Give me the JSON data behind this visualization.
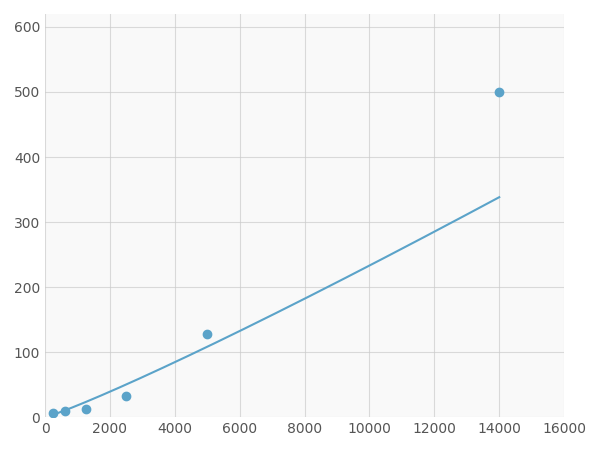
{
  "x": [
    250,
    625,
    1250,
    2500,
    5000,
    14000
  ],
  "y": [
    7,
    10,
    13,
    32,
    128,
    500
  ],
  "line_color": "#5ba3c9",
  "marker_color": "#5ba3c9",
  "marker_size": 6,
  "marker_style": "o",
  "line_width": 1.5,
  "xlim": [
    0,
    16000
  ],
  "ylim": [
    0,
    620
  ],
  "xticks": [
    0,
    2000,
    4000,
    6000,
    8000,
    10000,
    12000,
    14000,
    16000
  ],
  "yticks": [
    0,
    100,
    200,
    300,
    400,
    500,
    600
  ],
  "grid_color": "#cccccc",
  "grid_alpha": 0.7,
  "background_color": "#f9f9f9",
  "figure_background": "#ffffff"
}
